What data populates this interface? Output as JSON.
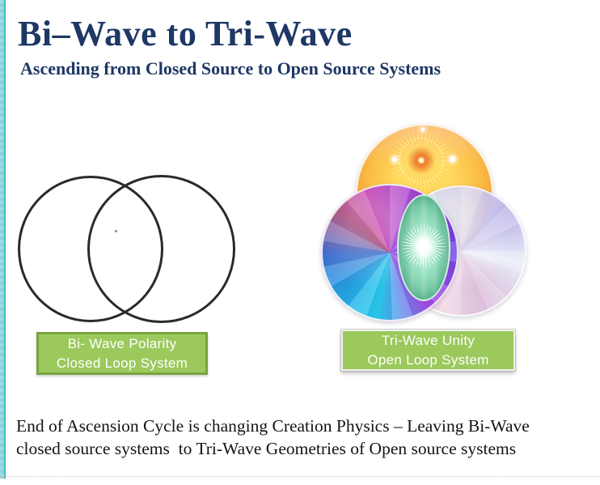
{
  "slide": {
    "title": "Bi–Wave to Tri-Wave",
    "subtitle": "Ascending from Closed Source to Open Source Systems",
    "footer": {
      "line1": "End of Ascension Cycle is changing Creation Physics – Leaving Bi-Wave",
      "line2": "closed source systems  to Tri-Wave Geometries of Open source systems"
    }
  },
  "diagrams": {
    "bi_wave": {
      "type": "venn-two-black-outline-circles",
      "label": {
        "line1": "Bi- Wave Polarity",
        "line2": "Closed Loop System"
      }
    },
    "tri_wave": {
      "type": "three-overlapping-colored-circles",
      "circles": [
        "yellow-sun-mandala-circle",
        "violet-blue-magenta-circle",
        "pale-lavender-pink-circle"
      ],
      "center": "teal-vesica-with-white-starburst",
      "label": {
        "line1": "Tri-Wave Unity",
        "line2": "Open Loop System"
      }
    }
  },
  "icons": {
    "sun_mandala": "sun-mandala-icon",
    "starburst": "starburst-icon",
    "sparkles": "sparkle-dot"
  },
  "colors": {
    "heading_navy": "#1E3765",
    "body_text": "#141414",
    "label_green_fill": "#9BC95C",
    "label_green_border": "#7AA341",
    "label_text": "#FFFFFF",
    "accent_stripe_teal": "#8BD2D6",
    "accent_stripe_edge": "#43B8BC",
    "venn_stroke": "#2A2A2A"
  }
}
